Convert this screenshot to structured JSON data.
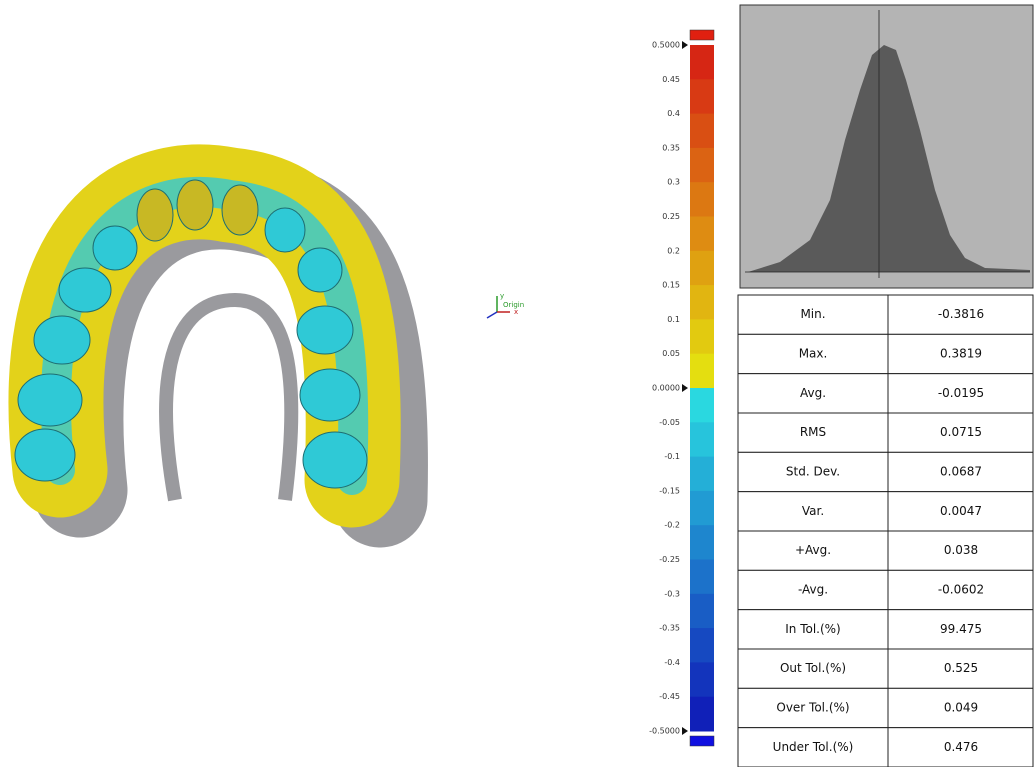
{
  "viewport": {
    "axis_labels": {
      "y": "y",
      "x": "x",
      "origin": "Origin"
    }
  },
  "color_scale": {
    "labels": [
      "0.5000",
      "0.45",
      "0.4",
      "0.35",
      "0.3",
      "0.25",
      "0.2",
      "0.15",
      "0.1",
      "0.05",
      "0.0000",
      "-0.05",
      "-0.1",
      "-0.15",
      "-0.2",
      "-0.25",
      "-0.3",
      "-0.35",
      "-0.4",
      "-0.45",
      "-0.5000"
    ]
  },
  "statistics": {
    "rows": [
      [
        "Min.",
        "-0.3816"
      ],
      [
        "Max.",
        "0.3819"
      ],
      [
        "Avg.",
        "-0.0195"
      ],
      [
        "RMS",
        "0.0715"
      ],
      [
        "Std. Dev.",
        "0.0687"
      ],
      [
        "Var.",
        "0.0047"
      ],
      [
        "+Avg.",
        "0.038"
      ],
      [
        "-Avg.",
        "-0.0602"
      ],
      [
        "In Tol.(%)",
        "99.475"
      ],
      [
        "Out Tol.(%)",
        "0.525"
      ],
      [
        "Over Tol.(%)",
        "0.049"
      ],
      [
        "Under Tol.(%)",
        "0.476"
      ]
    ]
  }
}
